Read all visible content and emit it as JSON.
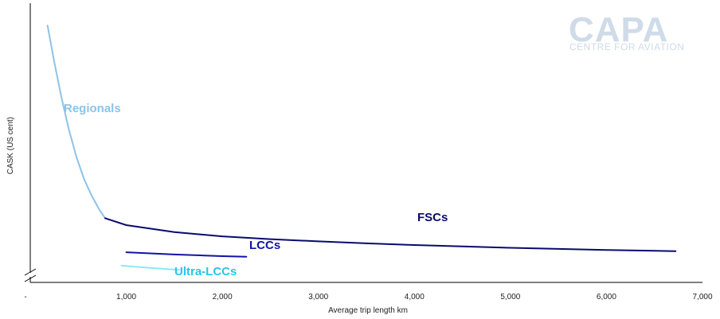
{
  "chart_data": {
    "type": "line",
    "title": "",
    "xlabel": "Average trip length km",
    "ylabel": "CASK (US cent)",
    "xlim": [
      0,
      7000
    ],
    "ylim": [
      0,
      1
    ],
    "x_ticks": [
      0,
      1000,
      2000,
      3000,
      4000,
      5000,
      6000,
      7000
    ],
    "x_tick_labels": [
      "-",
      "1,000",
      "2,000",
      "3,000",
      "4,000",
      "5,000",
      "6,000",
      "7,000"
    ],
    "y_tick_labels": [],
    "y_axis_break": true,
    "grid": false,
    "series": [
      {
        "name": "Regionals",
        "color": "#8dc3e8",
        "x": [
          180,
          250,
          320,
          400,
          480,
          560,
          640,
          720,
          780
        ],
        "y": [
          0.92,
          0.79,
          0.67,
          0.55,
          0.45,
          0.37,
          0.31,
          0.26,
          0.23
        ]
      },
      {
        "name": "FSCs",
        "color": "#0a0a6e",
        "x": [
          780,
          1000,
          1500,
          2000,
          2500,
          3000,
          3500,
          4000,
          4500,
          5000,
          5500,
          6000,
          6500,
          6720
        ],
        "y": [
          0.23,
          0.205,
          0.18,
          0.165,
          0.155,
          0.147,
          0.14,
          0.134,
          0.129,
          0.124,
          0.12,
          0.116,
          0.113,
          0.112
        ]
      },
      {
        "name": "LCCs",
        "color": "#1212a8",
        "x": [
          1000,
          1500,
          2000,
          2250
        ],
        "y": [
          0.108,
          0.1,
          0.094,
          0.092
        ]
      },
      {
        "name": "Ultra-LCCs",
        "color": "#8ee8f5",
        "x": [
          950,
          1250,
          1550
        ],
        "y": [
          0.06,
          0.052,
          0.045
        ]
      }
    ],
    "series_label_colors": {
      "Regionals": "#8dc3e8",
      "FSCs": "#0a0a6e",
      "LCCs": "#1212a8",
      "Ultra-LCCs": "#29c4ea"
    }
  },
  "logo": {
    "main": "CAPA",
    "sub": "CENTRE FOR AVIATION"
  }
}
